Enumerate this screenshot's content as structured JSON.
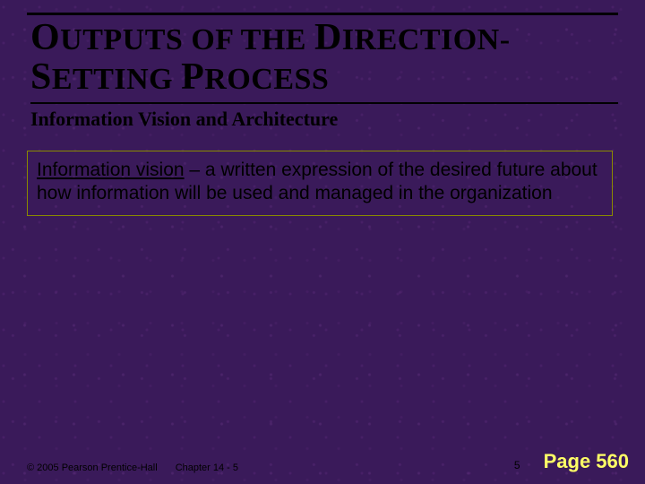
{
  "title": {
    "line1_pre_cap": "O",
    "line1_rest1": "UTPUTS OF THE ",
    "line1_cap2": "D",
    "line1_rest2": "IRECTION-",
    "line2_cap1": "S",
    "line2_rest1": "ETTING ",
    "line2_cap2": "P",
    "line2_rest2": "ROCESS"
  },
  "subtitle": "Information Vision and Architecture",
  "body": {
    "lead_underlined": "Information vision",
    "rest": " – a written expression of the desired future about how information will be used and managed in the organization"
  },
  "footer": {
    "copyright": "© 2005  Pearson Prentice-Hall",
    "chapter": "Chapter 14 - 5",
    "slide_number": "5",
    "page_label": "Page 560"
  },
  "colors": {
    "background_base": "#3a1a5a",
    "rule": "#000000",
    "box_border": "#8a8a00",
    "page_label": "#ffff66"
  }
}
